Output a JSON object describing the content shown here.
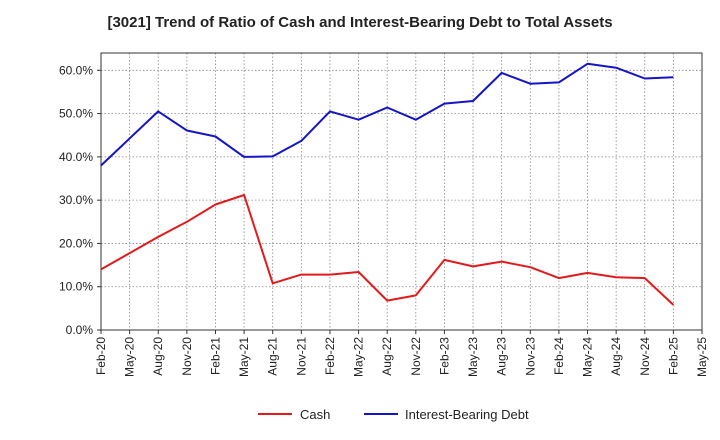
{
  "chart_data": {
    "type": "line",
    "title": "[3021]  Trend of Ratio of Cash and Interest-Bearing Debt to Total Assets",
    "xlabel": "",
    "ylabel": "",
    "ylim": [
      0,
      64
    ],
    "yticks": [
      0,
      10,
      20,
      30,
      40,
      50,
      60
    ],
    "ytick_labels": [
      "0.0%",
      "10.0%",
      "20.0%",
      "30.0%",
      "40.0%",
      "50.0%",
      "60.0%"
    ],
    "x_tick_labels": [
      "Feb-20",
      "May-20",
      "Aug-20",
      "Nov-20",
      "Feb-21",
      "May-21",
      "Aug-21",
      "Nov-21",
      "Feb-22",
      "May-22",
      "Aug-22",
      "Nov-22",
      "Feb-23",
      "May-23",
      "Aug-23",
      "Nov-23",
      "Feb-24",
      "May-24",
      "Aug-24",
      "Nov-24",
      "Feb-25",
      "May-25"
    ],
    "grid": true,
    "legend_position": "bottom",
    "series": [
      {
        "name": "Cash",
        "color": "#e31a1c",
        "values": [
          14.0,
          21.5,
          25.0,
          29.0,
          31.2,
          10.8,
          12.8,
          12.8,
          13.4,
          6.8,
          8.0,
          16.2,
          14.7,
          15.8,
          14.5,
          12.0,
          13.2,
          12.2,
          12.0,
          5.8,
          null
        ]
      },
      {
        "name": "Interest-Bearing Debt",
        "color": "#1515c8",
        "values": [
          38.0,
          50.5,
          46.1,
          44.7,
          40.0,
          40.1,
          43.7,
          50.5,
          48.6,
          51.4,
          48.6,
          52.3,
          52.9,
          59.4,
          56.9,
          57.2,
          61.5,
          60.6,
          58.1,
          58.4,
          null
        ]
      }
    ],
    "series_values_by_index": [
      [
        0,
        2,
        3,
        4,
        5,
        6,
        7,
        8,
        9,
        10,
        11,
        12,
        13,
        14,
        15,
        16,
        17,
        18,
        19,
        20
      ],
      [
        0,
        2,
        3,
        4,
        5,
        6,
        7,
        8,
        9,
        10,
        11,
        12,
        13,
        14,
        15,
        16,
        17,
        18,
        19,
        20
      ]
    ]
  }
}
